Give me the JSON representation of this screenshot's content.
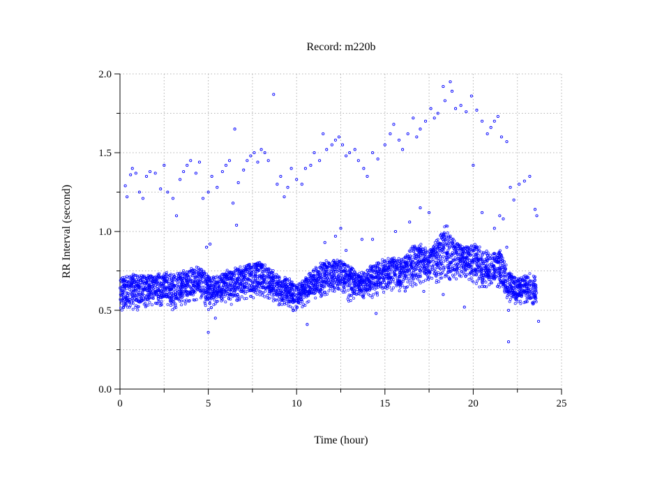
{
  "chart_data": {
    "type": "scatter",
    "title": "Record:  m220b",
    "xlabel": "Time (hour)",
    "ylabel": "RR Interval (second)",
    "xlim": [
      0,
      25
    ],
    "ylim": [
      0,
      2.0
    ],
    "xticks": [
      "0",
      "5",
      "10",
      "15",
      "20",
      "25"
    ],
    "yticks": [
      "0.0",
      "0.5",
      "1.0",
      "1.5",
      "2.0"
    ],
    "grid": true,
    "marker_color": "#0000ff",
    "main_band": {
      "description_columns": [
        "hour",
        "rr_low",
        "rr_high"
      ],
      "samples": [
        [
          0,
          0.55,
          0.7
        ],
        [
          0.5,
          0.52,
          0.72
        ],
        [
          1,
          0.55,
          0.73
        ],
        [
          1.5,
          0.57,
          0.72
        ],
        [
          2,
          0.58,
          0.72
        ],
        [
          2.5,
          0.58,
          0.74
        ],
        [
          3,
          0.55,
          0.72
        ],
        [
          3.5,
          0.58,
          0.74
        ],
        [
          4,
          0.6,
          0.76
        ],
        [
          4.5,
          0.62,
          0.78
        ],
        [
          5,
          0.55,
          0.72
        ],
        [
          5.5,
          0.58,
          0.72
        ],
        [
          6,
          0.6,
          0.74
        ],
        [
          6.5,
          0.58,
          0.76
        ],
        [
          7,
          0.62,
          0.78
        ],
        [
          7.5,
          0.62,
          0.8
        ],
        [
          8,
          0.64,
          0.8
        ],
        [
          8.5,
          0.62,
          0.76
        ],
        [
          9,
          0.58,
          0.72
        ],
        [
          9.5,
          0.57,
          0.7
        ],
        [
          10,
          0.52,
          0.66
        ],
        [
          10.5,
          0.58,
          0.7
        ],
        [
          11,
          0.62,
          0.76
        ],
        [
          11.5,
          0.64,
          0.8
        ],
        [
          12,
          0.66,
          0.82
        ],
        [
          12.5,
          0.68,
          0.82
        ],
        [
          13,
          0.6,
          0.78
        ],
        [
          13.5,
          0.6,
          0.74
        ],
        [
          14,
          0.62,
          0.76
        ],
        [
          14.5,
          0.64,
          0.8
        ],
        [
          15,
          0.66,
          0.82
        ],
        [
          15.5,
          0.68,
          0.84
        ],
        [
          16,
          0.66,
          0.82
        ],
        [
          16.5,
          0.7,
          0.9
        ],
        [
          17,
          0.72,
          0.92
        ],
        [
          17.5,
          0.74,
          0.88
        ],
        [
          18,
          0.72,
          0.95
        ],
        [
          18.5,
          0.75,
          1.05
        ],
        [
          19,
          0.74,
          0.92
        ],
        [
          19.5,
          0.76,
          0.9
        ],
        [
          20,
          0.72,
          0.92
        ],
        [
          20.5,
          0.68,
          0.88
        ],
        [
          21,
          0.7,
          0.86
        ],
        [
          21.5,
          0.68,
          0.88
        ],
        [
          22,
          0.6,
          0.74
        ],
        [
          22.5,
          0.58,
          0.7
        ],
        [
          23,
          0.6,
          0.72
        ],
        [
          23.6,
          0.56,
          0.72
        ]
      ]
    },
    "outliers": [
      [
        0.3,
        1.29
      ],
      [
        0.4,
        1.22
      ],
      [
        0.6,
        1.36
      ],
      [
        0.7,
        1.4
      ],
      [
        0.9,
        1.37
      ],
      [
        1.1,
        1.25
      ],
      [
        1.3,
        1.21
      ],
      [
        1.5,
        1.35
      ],
      [
        1.7,
        1.38
      ],
      [
        2.0,
        1.37
      ],
      [
        2.3,
        1.27
      ],
      [
        2.5,
        1.42
      ],
      [
        2.7,
        1.25
      ],
      [
        3.0,
        1.21
      ],
      [
        3.2,
        1.1
      ],
      [
        3.4,
        1.33
      ],
      [
        3.6,
        1.38
      ],
      [
        3.8,
        1.42
      ],
      [
        4.0,
        1.45
      ],
      [
        4.3,
        1.37
      ],
      [
        4.5,
        1.44
      ],
      [
        4.7,
        1.21
      ],
      [
        5.0,
        1.25
      ],
      [
        5.2,
        1.35
      ],
      [
        5.5,
        1.28
      ],
      [
        5.8,
        1.38
      ],
      [
        6.0,
        1.42
      ],
      [
        6.2,
        1.45
      ],
      [
        6.4,
        1.18
      ],
      [
        6.5,
        1.65
      ],
      [
        6.7,
        1.31
      ],
      [
        7.0,
        1.39
      ],
      [
        7.2,
        1.45
      ],
      [
        7.4,
        1.48
      ],
      [
        7.6,
        1.5
      ],
      [
        7.8,
        1.44
      ],
      [
        8.0,
        1.52
      ],
      [
        8.2,
        1.5
      ],
      [
        8.4,
        1.45
      ],
      [
        8.7,
        1.87
      ],
      [
        8.9,
        1.3
      ],
      [
        9.1,
        1.35
      ],
      [
        9.3,
        1.22
      ],
      [
        9.5,
        1.28
      ],
      [
        9.7,
        1.4
      ],
      [
        10.0,
        1.33
      ],
      [
        10.3,
        1.3
      ],
      [
        10.5,
        1.4
      ],
      [
        10.8,
        1.42
      ],
      [
        11.0,
        1.5
      ],
      [
        11.3,
        1.45
      ],
      [
        11.5,
        1.62
      ],
      [
        11.7,
        1.52
      ],
      [
        12.0,
        1.55
      ],
      [
        12.2,
        1.58
      ],
      [
        12.4,
        1.6
      ],
      [
        12.6,
        1.55
      ],
      [
        12.8,
        1.48
      ],
      [
        13.0,
        1.5
      ],
      [
        13.3,
        1.52
      ],
      [
        13.5,
        1.45
      ],
      [
        13.8,
        1.4
      ],
      [
        14.0,
        1.35
      ],
      [
        14.3,
        1.5
      ],
      [
        14.6,
        1.46
      ],
      [
        15.0,
        1.55
      ],
      [
        15.3,
        1.62
      ],
      [
        15.5,
        1.68
      ],
      [
        15.8,
        1.58
      ],
      [
        16.0,
        1.52
      ],
      [
        16.3,
        1.62
      ],
      [
        16.6,
        1.72
      ],
      [
        16.8,
        1.6
      ],
      [
        17.0,
        1.65
      ],
      [
        17.3,
        1.7
      ],
      [
        17.6,
        1.78
      ],
      [
        17.8,
        1.72
      ],
      [
        18.0,
        1.75
      ],
      [
        18.3,
        1.92
      ],
      [
        18.4,
        1.83
      ],
      [
        18.7,
        1.95
      ],
      [
        18.8,
        1.89
      ],
      [
        19.0,
        1.78
      ],
      [
        19.3,
        1.8
      ],
      [
        19.6,
        1.76
      ],
      [
        19.9,
        1.86
      ],
      [
        20.0,
        1.42
      ],
      [
        20.2,
        1.77
      ],
      [
        20.5,
        1.7
      ],
      [
        20.8,
        1.62
      ],
      [
        21.0,
        1.66
      ],
      [
        21.2,
        1.7
      ],
      [
        21.4,
        1.73
      ],
      [
        21.6,
        1.6
      ],
      [
        21.9,
        1.57
      ],
      [
        22.1,
        1.28
      ],
      [
        22.3,
        1.2
      ],
      [
        22.6,
        1.3
      ],
      [
        22.9,
        1.32
      ],
      [
        23.2,
        1.35
      ],
      [
        23.5,
        1.14
      ],
      [
        23.6,
        1.1
      ],
      [
        4.9,
        0.9
      ],
      [
        5.1,
        0.92
      ],
      [
        5.4,
        0.45
      ],
      [
        5.0,
        0.36
      ],
      [
        6.6,
        1.04
      ],
      [
        9.8,
        0.5
      ],
      [
        10.6,
        0.41
      ],
      [
        11.6,
        0.93
      ],
      [
        12.2,
        0.97
      ],
      [
        12.5,
        1.02
      ],
      [
        12.8,
        0.88
      ],
      [
        13.7,
        0.95
      ],
      [
        14.3,
        0.95
      ],
      [
        14.5,
        0.48
      ],
      [
        15.6,
        1.0
      ],
      [
        16.4,
        1.06
      ],
      [
        17.0,
        1.15
      ],
      [
        17.5,
        1.12
      ],
      [
        17.2,
        0.62
      ],
      [
        18.3,
        0.6
      ],
      [
        19.5,
        0.52
      ],
      [
        20.5,
        1.12
      ],
      [
        21.2,
        1.02
      ],
      [
        21.5,
        1.1
      ],
      [
        21.7,
        1.08
      ],
      [
        21.9,
        0.9
      ],
      [
        22.0,
        0.3
      ],
      [
        22.0,
        0.5
      ],
      [
        23.7,
        0.43
      ]
    ]
  }
}
